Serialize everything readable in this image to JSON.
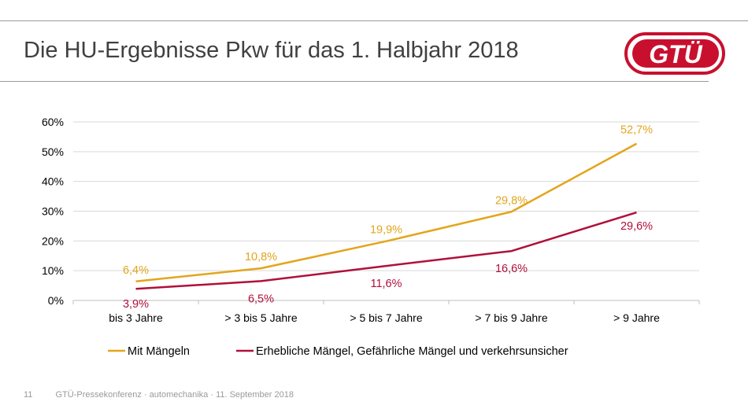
{
  "slide": {
    "title": "Die HU-Ergebnisse Pkw für das 1. Halbjahr 2018",
    "logo_text": "GTÜ",
    "footer_page": "11",
    "footer_text": "GTÜ-Pressekonferenz · automechanika · 11. September 2018"
  },
  "colors": {
    "series_1": "#E3A51C",
    "series_2": "#B0103A",
    "logo_red": "#C8102E"
  },
  "chart_data": {
    "type": "line",
    "title": "",
    "xlabel": "",
    "ylabel": "",
    "categories": [
      "bis 3 Jahre",
      "> 3 bis 5 Jahre",
      "> 5 bis 7 Jahre",
      "> 7 bis 9 Jahre",
      "> 9 Jahre"
    ],
    "ylim": [
      0,
      60
    ],
    "yticks": [
      "0%",
      "10%",
      "20%",
      "30%",
      "40%",
      "50%",
      "60%"
    ],
    "grid": true,
    "legend_position": "bottom",
    "series": [
      {
        "name": "Mit Mängeln",
        "values": [
          6.4,
          10.8,
          19.9,
          29.8,
          52.7
        ],
        "labels": [
          "6,4%",
          "10,8%",
          "19,9%",
          "29,8%",
          "52,7%"
        ]
      },
      {
        "name": "Erhebliche Mängel, Gefährliche Mängel und verkehrsunsicher",
        "values": [
          3.9,
          6.5,
          11.6,
          16.6,
          29.6
        ],
        "labels": [
          "3,9%",
          "6,5%",
          "11,6%",
          "16,6%",
          "29,6%"
        ]
      }
    ]
  }
}
